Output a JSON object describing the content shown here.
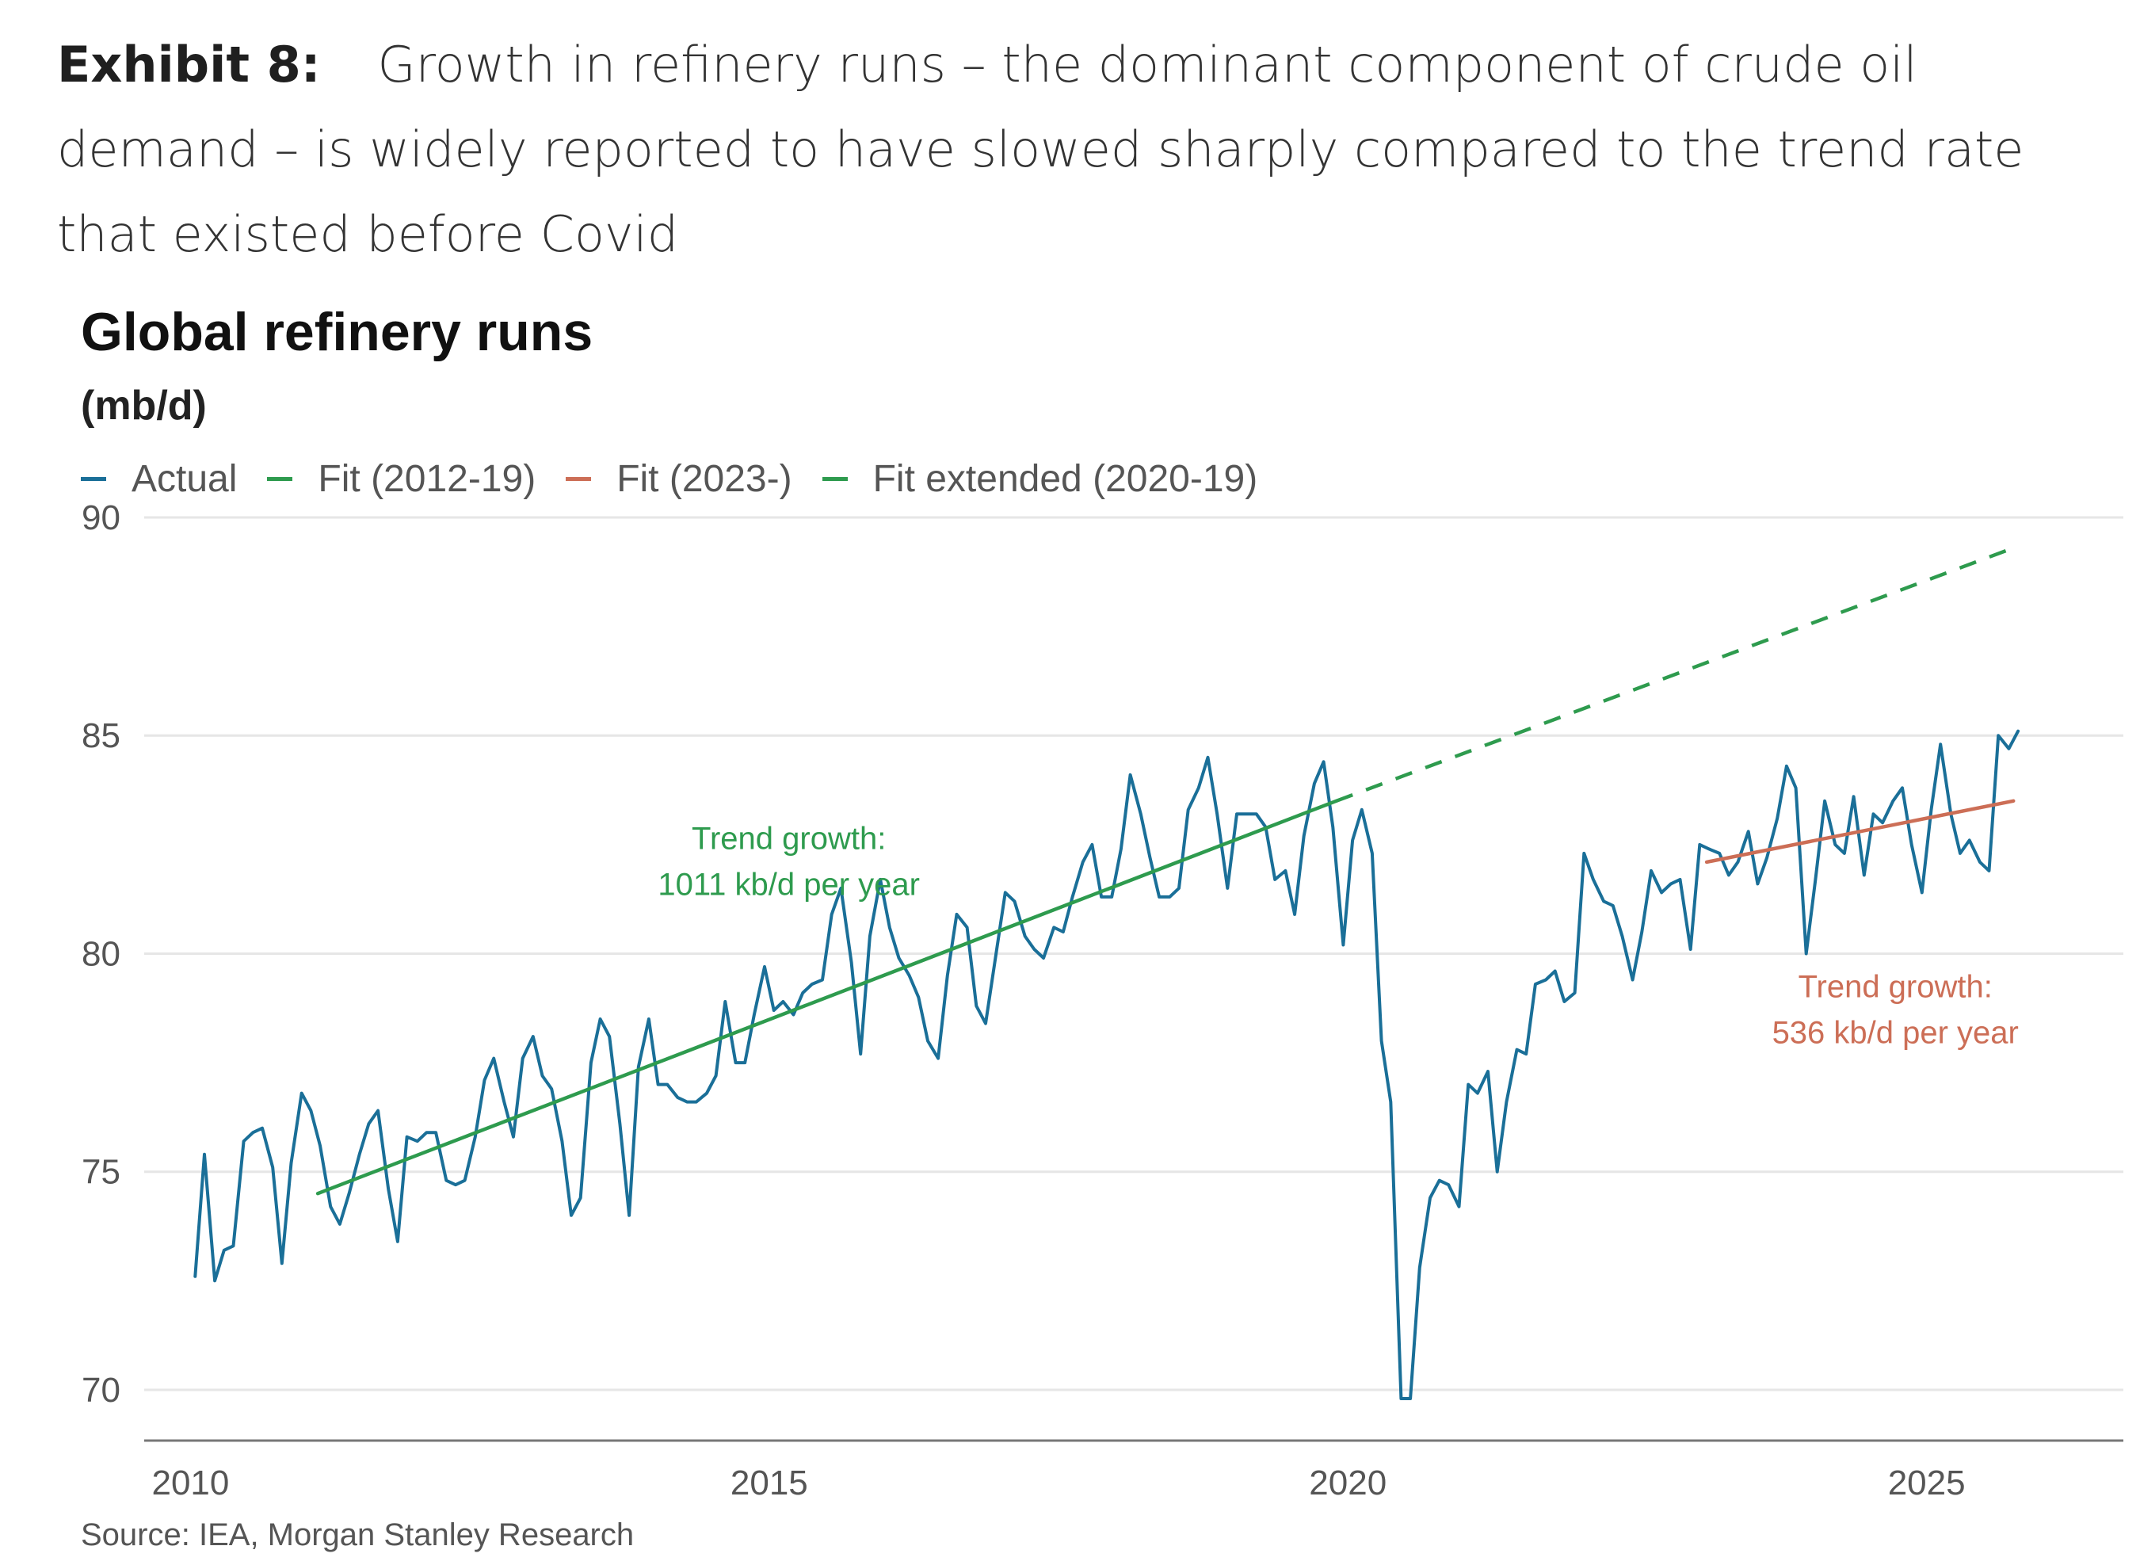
{
  "exhibit": {
    "label": "Exhibit 8:",
    "caption": "Growth in refinery runs – the dominant component of crude oil demand – is widely reported to have slowed sharply compared to the trend rate that existed before Covid"
  },
  "source": "Source: IEA, Morgan Stanley Research",
  "colors": {
    "actual": "#1a6f98",
    "fit_2012_19": "#2e9b4e",
    "fit_2023": "#cc6e56",
    "fit_extended": "#2e9b4e",
    "grid": "#e6e6e6",
    "axis": "#777777"
  },
  "chart_data": {
    "type": "line",
    "title": "Global refinery runs",
    "ylabel": "(mb/d)",
    "xlabel": "",
    "xlim": [
      2009.6,
      2026.7
    ],
    "ylim": [
      68.8,
      90.2
    ],
    "x_ticks": [
      2010,
      2015,
      2020,
      2025
    ],
    "y_ticks": [
      70,
      75,
      80,
      85,
      90
    ],
    "grid": true,
    "legend_position": "top-left",
    "legend": [
      "Actual",
      "Fit (2012-19)",
      "Fit (2023-)",
      "Fit extended (2020-19)"
    ],
    "series": [
      {
        "name": "Actual",
        "color": "#1a6f98",
        "points": [
          [
            2010.04,
            72.6
          ],
          [
            2010.12,
            75.4
          ],
          [
            2010.21,
            72.5
          ],
          [
            2010.29,
            73.2
          ],
          [
            2010.37,
            73.3
          ],
          [
            2010.46,
            75.7
          ],
          [
            2010.54,
            75.9
          ],
          [
            2010.62,
            76.0
          ],
          [
            2010.71,
            75.1
          ],
          [
            2010.79,
            72.9
          ],
          [
            2010.87,
            75.2
          ],
          [
            2010.96,
            76.8
          ],
          [
            2011.04,
            76.4
          ],
          [
            2011.12,
            75.6
          ],
          [
            2011.21,
            74.2
          ],
          [
            2011.29,
            73.8
          ],
          [
            2011.37,
            74.5
          ],
          [
            2011.46,
            75.4
          ],
          [
            2011.54,
            76.1
          ],
          [
            2011.62,
            76.4
          ],
          [
            2011.71,
            74.6
          ],
          [
            2011.79,
            73.4
          ],
          [
            2011.87,
            75.8
          ],
          [
            2011.96,
            75.7
          ],
          [
            2012.04,
            75.9
          ],
          [
            2012.12,
            75.9
          ],
          [
            2012.21,
            74.8
          ],
          [
            2012.29,
            74.7
          ],
          [
            2012.37,
            74.8
          ],
          [
            2012.46,
            75.8
          ],
          [
            2012.54,
            77.1
          ],
          [
            2012.62,
            77.6
          ],
          [
            2012.71,
            76.6
          ],
          [
            2012.79,
            75.8
          ],
          [
            2012.87,
            77.6
          ],
          [
            2012.96,
            78.1
          ],
          [
            2013.04,
            77.2
          ],
          [
            2013.12,
            76.9
          ],
          [
            2013.21,
            75.7
          ],
          [
            2013.29,
            74.0
          ],
          [
            2013.37,
            74.4
          ],
          [
            2013.46,
            77.5
          ],
          [
            2013.54,
            78.5
          ],
          [
            2013.62,
            78.1
          ],
          [
            2013.71,
            76.1
          ],
          [
            2013.79,
            74.0
          ],
          [
            2013.87,
            77.4
          ],
          [
            2013.96,
            78.5
          ],
          [
            2014.04,
            77.0
          ],
          [
            2014.12,
            77.0
          ],
          [
            2014.21,
            76.7
          ],
          [
            2014.29,
            76.6
          ],
          [
            2014.37,
            76.6
          ],
          [
            2014.46,
            76.8
          ],
          [
            2014.54,
            77.2
          ],
          [
            2014.62,
            78.9
          ],
          [
            2014.71,
            77.5
          ],
          [
            2014.79,
            77.5
          ],
          [
            2014.87,
            78.6
          ],
          [
            2014.96,
            79.7
          ],
          [
            2015.04,
            78.7
          ],
          [
            2015.12,
            78.9
          ],
          [
            2015.21,
            78.6
          ],
          [
            2015.29,
            79.1
          ],
          [
            2015.37,
            79.3
          ],
          [
            2015.46,
            79.4
          ],
          [
            2015.54,
            80.9
          ],
          [
            2015.62,
            81.5
          ],
          [
            2015.71,
            79.8
          ],
          [
            2015.79,
            77.7
          ],
          [
            2015.87,
            80.4
          ],
          [
            2015.96,
            81.7
          ],
          [
            2016.04,
            80.6
          ],
          [
            2016.12,
            79.9
          ],
          [
            2016.21,
            79.5
          ],
          [
            2016.29,
            79.0
          ],
          [
            2016.37,
            78.0
          ],
          [
            2016.46,
            77.6
          ],
          [
            2016.54,
            79.5
          ],
          [
            2016.62,
            80.9
          ],
          [
            2016.71,
            80.6
          ],
          [
            2016.79,
            78.8
          ],
          [
            2016.87,
            78.4
          ],
          [
            2016.96,
            80.0
          ],
          [
            2017.04,
            81.4
          ],
          [
            2017.12,
            81.2
          ],
          [
            2017.21,
            80.4
          ],
          [
            2017.29,
            80.1
          ],
          [
            2017.37,
            79.9
          ],
          [
            2017.46,
            80.6
          ],
          [
            2017.54,
            80.5
          ],
          [
            2017.62,
            81.3
          ],
          [
            2017.71,
            82.1
          ],
          [
            2017.79,
            82.5
          ],
          [
            2017.87,
            81.3
          ],
          [
            2017.96,
            81.3
          ],
          [
            2018.04,
            82.4
          ],
          [
            2018.12,
            84.1
          ],
          [
            2018.21,
            83.2
          ],
          [
            2018.29,
            82.2
          ],
          [
            2018.37,
            81.3
          ],
          [
            2018.46,
            81.3
          ],
          [
            2018.54,
            81.5
          ],
          [
            2018.62,
            83.3
          ],
          [
            2018.71,
            83.8
          ],
          [
            2018.79,
            84.5
          ],
          [
            2018.87,
            83.2
          ],
          [
            2018.96,
            81.5
          ],
          [
            2019.04,
            83.2
          ],
          [
            2019.12,
            83.2
          ],
          [
            2019.21,
            83.2
          ],
          [
            2019.29,
            82.9
          ],
          [
            2019.37,
            81.7
          ],
          [
            2019.46,
            81.9
          ],
          [
            2019.54,
            80.9
          ],
          [
            2019.62,
            82.7
          ],
          [
            2019.71,
            83.9
          ],
          [
            2019.79,
            84.4
          ],
          [
            2019.87,
            82.9
          ],
          [
            2019.96,
            80.2
          ],
          [
            2020.04,
            82.6
          ],
          [
            2020.12,
            83.3
          ],
          [
            2020.21,
            82.3
          ],
          [
            2020.29,
            78.0
          ],
          [
            2020.37,
            76.6
          ],
          [
            2020.46,
            69.8
          ],
          [
            2020.54,
            69.8
          ],
          [
            2020.62,
            72.8
          ],
          [
            2020.71,
            74.4
          ],
          [
            2020.79,
            74.8
          ],
          [
            2020.87,
            74.7
          ],
          [
            2020.96,
            74.2
          ],
          [
            2021.04,
            77.0
          ],
          [
            2021.12,
            76.8
          ],
          [
            2021.21,
            77.3
          ],
          [
            2021.29,
            75.0
          ],
          [
            2021.37,
            76.6
          ],
          [
            2021.46,
            77.8
          ],
          [
            2021.54,
            77.7
          ],
          [
            2021.62,
            79.3
          ],
          [
            2021.71,
            79.4
          ],
          [
            2021.79,
            79.6
          ],
          [
            2021.87,
            78.9
          ],
          [
            2021.96,
            79.1
          ],
          [
            2022.04,
            82.3
          ],
          [
            2022.12,
            81.7
          ],
          [
            2022.21,
            81.2
          ],
          [
            2022.29,
            81.1
          ],
          [
            2022.37,
            80.4
          ],
          [
            2022.46,
            79.4
          ],
          [
            2022.54,
            80.5
          ],
          [
            2022.62,
            81.9
          ],
          [
            2022.71,
            81.4
          ],
          [
            2022.79,
            81.6
          ],
          [
            2022.87,
            81.7
          ],
          [
            2022.96,
            80.1
          ],
          [
            2023.04,
            82.5
          ],
          [
            2023.12,
            82.4
          ],
          [
            2023.21,
            82.3
          ],
          [
            2023.29,
            81.8
          ],
          [
            2023.37,
            82.1
          ],
          [
            2023.46,
            82.8
          ],
          [
            2023.54,
            81.6
          ],
          [
            2023.62,
            82.2
          ],
          [
            2023.71,
            83.1
          ],
          [
            2023.79,
            84.3
          ],
          [
            2023.87,
            83.8
          ],
          [
            2023.96,
            80.0
          ],
          [
            2024.04,
            81.7
          ],
          [
            2024.12,
            83.5
          ],
          [
            2024.21,
            82.5
          ],
          [
            2024.29,
            82.3
          ],
          [
            2024.37,
            83.6
          ],
          [
            2024.46,
            81.8
          ],
          [
            2024.54,
            83.2
          ],
          [
            2024.62,
            83.0
          ],
          [
            2024.71,
            83.5
          ],
          [
            2024.79,
            83.8
          ],
          [
            2024.87,
            82.5
          ],
          [
            2024.96,
            81.4
          ],
          [
            2025.04,
            83.3
          ],
          [
            2025.12,
            84.8
          ],
          [
            2025.21,
            83.2
          ],
          [
            2025.29,
            82.3
          ],
          [
            2025.37,
            82.6
          ],
          [
            2025.46,
            82.1
          ],
          [
            2025.54,
            81.9
          ],
          [
            2025.62,
            85.0
          ],
          [
            2025.71,
            84.7
          ],
          [
            2025.79,
            85.1
          ]
        ]
      },
      {
        "name": "Fit (2012-19)",
        "color": "#2e9b4e",
        "dashed": false,
        "points": [
          [
            2011.1,
            74.5
          ],
          [
            2019.9,
            83.5
          ]
        ]
      },
      {
        "name": "Fit (2023-)",
        "color": "#cc6e56",
        "dashed": false,
        "points": [
          [
            2023.1,
            82.1
          ],
          [
            2025.75,
            83.5
          ]
        ]
      },
      {
        "name": "Fit extended (2020-19)",
        "color": "#2e9b4e",
        "dashed": true,
        "points": [
          [
            2019.9,
            83.5
          ],
          [
            2025.75,
            89.3
          ]
        ]
      }
    ],
    "annotations": [
      {
        "lines": [
          "Trend growth:",
          "1011 kb/d per year"
        ],
        "x": 2015.17,
        "y": 82.4,
        "color": "#2e9b4e"
      },
      {
        "lines": [
          "Trend growth:",
          "536 kb/d per year"
        ],
        "x": 2024.73,
        "y": 79.0,
        "color": "#cc6e56"
      }
    ]
  }
}
